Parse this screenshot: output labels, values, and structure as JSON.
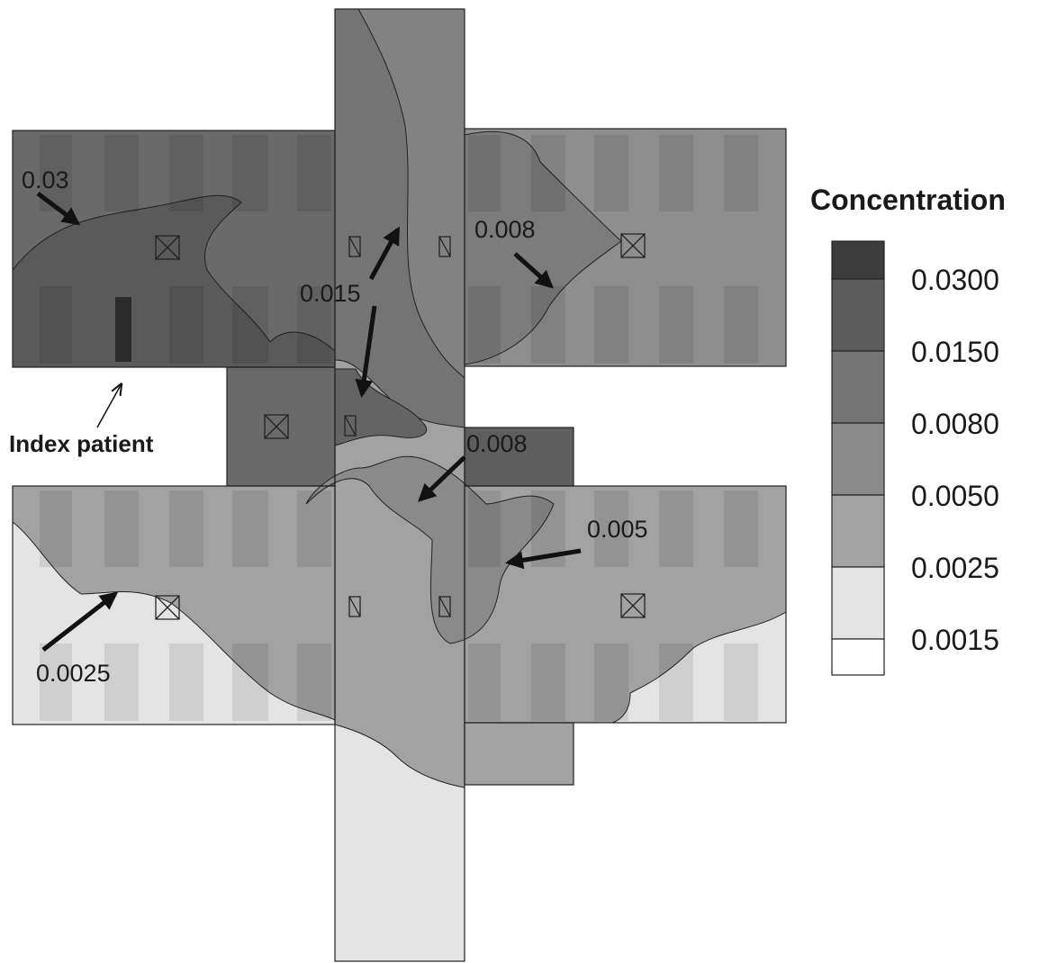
{
  "annotations": [
    "0.03",
    "0.015",
    "0.008",
    "0.008",
    "0.005",
    "0.0025"
  ],
  "index_label": "Index patient",
  "legend": {
    "title": "Concentration",
    "levels": [
      "0.0300",
      "0.0150",
      "0.0080",
      "0.0050",
      "0.0025",
      "0.0015"
    ],
    "colors": [
      "#3c3c3c",
      "#5c5c5c",
      "#747474",
      "#8a8a8a",
      "#a2a2a2",
      "#e4e4e4",
      "#ffffff"
    ]
  }
}
